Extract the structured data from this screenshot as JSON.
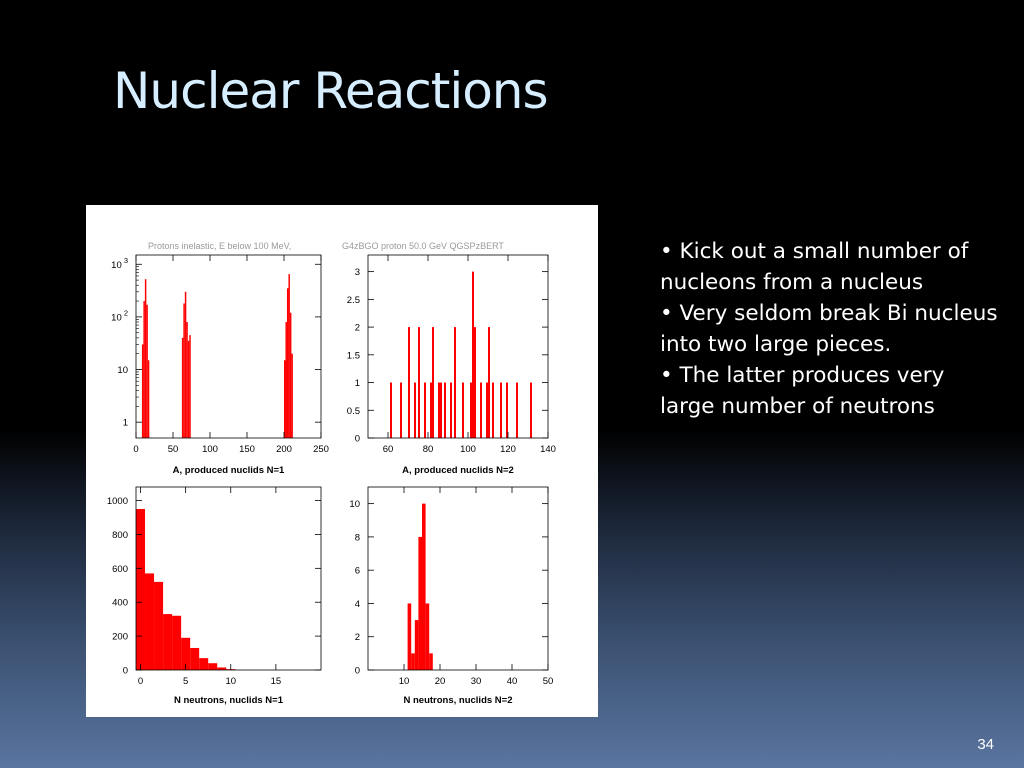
{
  "slide": {
    "title": "Nuclear Reactions",
    "bullets": [
      "• Kick out a small number of nucleons from a nucleus",
      "• Very seldom break Bi nucleus into two large pieces.",
      "• The latter produces very large number of neutrons"
    ],
    "page_number": "34",
    "colors": {
      "title": "#d6eeff",
      "bar_fill": "#ff0000",
      "panel_background": "#ffffff"
    }
  },
  "figure": {
    "header_left": "Protons inelastic, E below 100 MeV,",
    "header_right": "G4zBGO proton 50.0 GeV QGSPzBERT"
  },
  "chart_data": [
    {
      "type": "bar",
      "title": "",
      "xlabel": "A, produced nuclids N=1",
      "ylabel": "",
      "xlim": [
        0,
        250
      ],
      "ylim": [
        0.5,
        1500
      ],
      "yscale": "log",
      "xticks": [
        0,
        50,
        100,
        150,
        200,
        250
      ],
      "yticks": [
        {
          "value": 1,
          "label": "1",
          "exp": ""
        },
        {
          "value": 10,
          "label": "10",
          "exp": ""
        },
        {
          "value": 100,
          "label": "10",
          "exp": "2"
        },
        {
          "value": 1000,
          "label": "10",
          "exp": "3"
        }
      ],
      "bin_width": 2,
      "bins": [
        [
          8,
          30
        ],
        [
          10,
          200
        ],
        [
          12,
          520
        ],
        [
          14,
          170
        ],
        [
          16,
          15
        ],
        [
          62,
          40
        ],
        [
          64,
          180
        ],
        [
          66,
          300
        ],
        [
          68,
          80
        ],
        [
          70,
          35
        ],
        [
          72,
          45
        ],
        [
          200,
          15
        ],
        [
          202,
          80
        ],
        [
          204,
          350
        ],
        [
          206,
          650
        ],
        [
          208,
          120
        ],
        [
          210,
          20
        ]
      ]
    },
    {
      "type": "bar",
      "title": "",
      "xlabel": "A, produced nuclids N=2",
      "ylabel": "",
      "xlim": [
        50,
        140
      ],
      "ylim": [
        0,
        3.3
      ],
      "yscale": "linear",
      "xticks": [
        60,
        80,
        100,
        120,
        140
      ],
      "yticks": [
        {
          "value": 0,
          "label": "0"
        },
        {
          "value": 0.5,
          "label": "0.5"
        },
        {
          "value": 1,
          "label": "1"
        },
        {
          "value": 1.5,
          "label": "1.5"
        },
        {
          "value": 2,
          "label": "2"
        },
        {
          "value": 2.5,
          "label": "2.5"
        },
        {
          "value": 3,
          "label": "3"
        }
      ],
      "bin_width": 1,
      "bins": [
        [
          61,
          1
        ],
        [
          66,
          1
        ],
        [
          70,
          2
        ],
        [
          73,
          1
        ],
        [
          75,
          2
        ],
        [
          78,
          1
        ],
        [
          81,
          1
        ],
        [
          82,
          2
        ],
        [
          85,
          1
        ],
        [
          86,
          1
        ],
        [
          88,
          1
        ],
        [
          91,
          1
        ],
        [
          93,
          2
        ],
        [
          97,
          1
        ],
        [
          101,
          1
        ],
        [
          102,
          3
        ],
        [
          103,
          2
        ],
        [
          106,
          1
        ],
        [
          109,
          1
        ],
        [
          110,
          2
        ],
        [
          112,
          1
        ],
        [
          116,
          1
        ],
        [
          119,
          1
        ],
        [
          124,
          1
        ],
        [
          131,
          1
        ]
      ]
    },
    {
      "type": "bar",
      "title": "",
      "xlabel": "N neutrons, nuclids N=1",
      "ylabel": "",
      "xlim": [
        -0.5,
        20
      ],
      "ylim": [
        0,
        1080
      ],
      "yscale": "linear",
      "xticks": [
        0,
        5,
        10,
        15
      ],
      "yticks": [
        {
          "value": 0,
          "label": "0"
        },
        {
          "value": 200,
          "label": "200"
        },
        {
          "value": 400,
          "label": "400"
        },
        {
          "value": 600,
          "label": "600"
        },
        {
          "value": 800,
          "label": "800"
        },
        {
          "value": 1000,
          "label": "1000"
        }
      ],
      "bin_width": 1,
      "bins": [
        [
          -0.5,
          950
        ],
        [
          0.5,
          570
        ],
        [
          1.5,
          520
        ],
        [
          2.5,
          330
        ],
        [
          3.5,
          320
        ],
        [
          4.5,
          190
        ],
        [
          5.5,
          130
        ],
        [
          6.5,
          70
        ],
        [
          7.5,
          40
        ],
        [
          8.5,
          15
        ],
        [
          9.5,
          5
        ]
      ]
    },
    {
      "type": "bar",
      "title": "",
      "xlabel": "N neutrons, nuclids N=2",
      "ylabel": "",
      "xlim": [
        0,
        50
      ],
      "ylim": [
        0,
        11
      ],
      "yscale": "linear",
      "xticks": [
        10,
        20,
        30,
        40,
        50
      ],
      "yticks": [
        {
          "value": 0,
          "label": "0"
        },
        {
          "value": 2,
          "label": "2"
        },
        {
          "value": 4,
          "label": "4"
        },
        {
          "value": 6,
          "label": "6"
        },
        {
          "value": 8,
          "label": "8"
        },
        {
          "value": 10,
          "label": "10"
        }
      ],
      "bin_width": 1,
      "bins": [
        [
          11,
          4
        ],
        [
          12,
          1
        ],
        [
          13,
          3
        ],
        [
          14,
          8
        ],
        [
          15,
          10
        ],
        [
          16,
          4
        ],
        [
          17,
          1
        ]
      ]
    }
  ]
}
